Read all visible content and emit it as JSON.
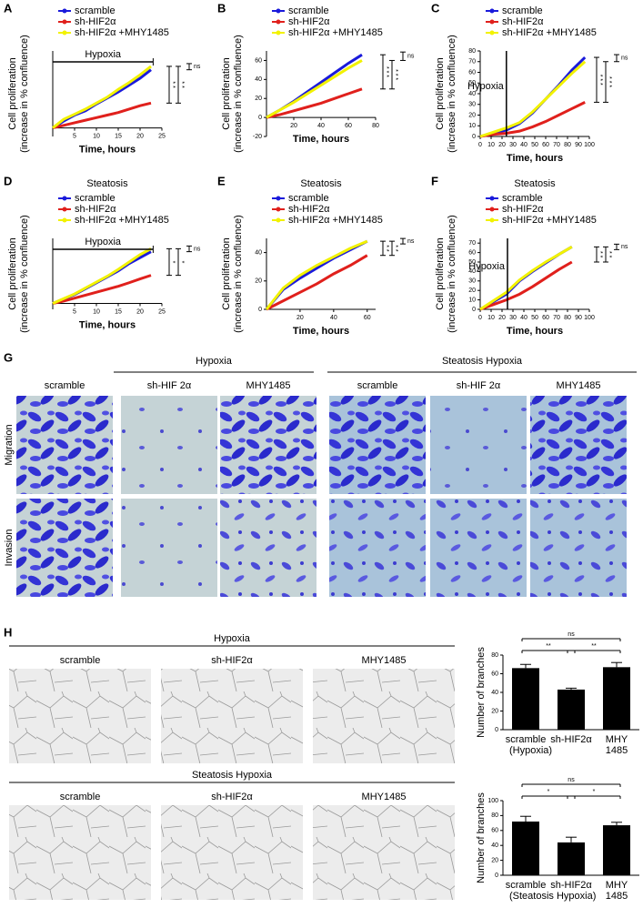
{
  "chart_data": [
    {
      "panel": "A",
      "type": "line",
      "ylabel": [
        "Cell proliferation",
        "(increase in % confluence)"
      ],
      "xlabel": "Time, hours",
      "xlim": [
        0,
        25
      ],
      "xticks": [
        5,
        10,
        15,
        20,
        25
      ],
      "ylim": [
        -1,
        9
      ],
      "x": [
        0,
        2.5,
        5,
        7.5,
        10,
        12.5,
        15,
        17.5,
        20,
        22.5
      ],
      "series": [
        {
          "name": "scramble",
          "color": "#1a1adb",
          "values": [
            0,
            0.8,
            1.5,
            2,
            2.8,
            3.5,
            4.2,
            5,
            5.8,
            6.8
          ]
        },
        {
          "name": "sh-HIF2α",
          "color": "#e0201c",
          "values": [
            0,
            0.3,
            0.6,
            0.9,
            1.2,
            1.5,
            1.8,
            2.2,
            2.6,
            2.9
          ]
        },
        {
          "name": "sh-HIF2α +MHY1485",
          "color": "#f2f200",
          "values": [
            0,
            1,
            1.6,
            2.2,
            2.9,
            3.6,
            4.5,
            5.3,
            6.2,
            7.2
          ]
        }
      ],
      "marker": {
        "label": "Hypoxia",
        "x": [
          0,
          23
        ]
      },
      "brackets": [
        "ns",
        "* *",
        "* *"
      ]
    },
    {
      "panel": "B",
      "type": "line",
      "ylabel": [
        "Cell proliferation",
        "(increase in % confluence)"
      ],
      "xlabel": "Time, hours",
      "xlim": [
        0,
        80
      ],
      "xticks": [
        20,
        40,
        60,
        80
      ],
      "ylim": [
        -20,
        70
      ],
      "yticks": [
        -20,
        0,
        20,
        40,
        60
      ],
      "x": [
        0,
        10,
        20,
        30,
        40,
        50,
        60,
        70
      ],
      "series": [
        {
          "name": "scramble",
          "color": "#1a1adb",
          "values": [
            0,
            8,
            17,
            27,
            37,
            47,
            57,
            66
          ]
        },
        {
          "name": "sh-HIF2α",
          "color": "#e0201c",
          "values": [
            0,
            3,
            7,
            11,
            15,
            20,
            25,
            30
          ]
        },
        {
          "name": "sh-HIF2α +MHY1485",
          "color": "#f2f200",
          "values": [
            0,
            8,
            16,
            25,
            34,
            43,
            52,
            60
          ]
        }
      ],
      "brackets": [
        "ns",
        "* * *",
        "* * *"
      ]
    },
    {
      "panel": "C",
      "type": "line",
      "ylabel": [
        "Cell proliferation",
        "(increase in % confluence)"
      ],
      "xlabel": "Time, hours",
      "xlim": [
        0,
        100
      ],
      "xticks": [
        0,
        10,
        20,
        30,
        40,
        50,
        60,
        70,
        80,
        90,
        100
      ],
      "ylim": [
        0,
        80
      ],
      "yticks": [
        0,
        10,
        20,
        30,
        40,
        50,
        60,
        70,
        80
      ],
      "x": [
        0,
        12,
        24,
        36,
        48,
        60,
        72,
        84,
        96
      ],
      "series": [
        {
          "name": "scramble",
          "color": "#1a1adb",
          "values": [
            0,
            3,
            6,
            12,
            22,
            35,
            48,
            62,
            74
          ]
        },
        {
          "name": "sh-HIF2α",
          "color": "#e0201c",
          "values": [
            0,
            2,
            3,
            5,
            9,
            14,
            20,
            26,
            32
          ]
        },
        {
          "name": "sh-HIF2α +MHY1485",
          "color": "#f2f200",
          "values": [
            0,
            4,
            8,
            13,
            23,
            35,
            47,
            59,
            70
          ]
        }
      ],
      "marker": {
        "label": "Hypoxia",
        "x": 24
      },
      "brackets": [
        "ns",
        "* * *",
        "* * *"
      ]
    },
    {
      "panel": "D",
      "type": "line",
      "title": "Steatosis",
      "ylabel": [
        "Cell proliferation",
        "(increase in % confluence)"
      ],
      "xlabel": "Time, hours",
      "xlim": [
        0,
        25
      ],
      "xticks": [
        5,
        10,
        15,
        20,
        25
      ],
      "ylim": [
        -2,
        22
      ],
      "x": [
        0,
        2.5,
        5,
        7.5,
        10,
        12.5,
        15,
        17.5,
        20,
        22.5
      ],
      "series": [
        {
          "name": "scramble",
          "color": "#1a1adb",
          "values": [
            0,
            1.5,
            3,
            5,
            7,
            9,
            11,
            13.5,
            15.5,
            17.5
          ]
        },
        {
          "name": "sh-HIF2α",
          "color": "#e0201c",
          "values": [
            0,
            0.8,
            1.8,
            2.8,
            3.8,
            4.8,
            5.8,
            7,
            8.3,
            9.5
          ]
        },
        {
          "name": "sh-HIF2α +MHY1485",
          "color": "#f2f200",
          "values": [
            0,
            1.6,
            3.2,
            5.2,
            7.2,
            9.2,
            11.5,
            14,
            16.5,
            18.5
          ]
        }
      ],
      "marker": {
        "label": "Hypoxia",
        "x": [
          0,
          23
        ]
      },
      "brackets": [
        "ns",
        "*",
        "*"
      ]
    },
    {
      "panel": "E",
      "type": "line",
      "title": "Steatosis",
      "ylabel": [
        "Cell proliferation",
        "(increase in % confluence)"
      ],
      "xlabel": "Time, hours",
      "xlim": [
        0,
        65
      ],
      "xticks": [
        20,
        40,
        60
      ],
      "ylim": [
        0,
        50
      ],
      "yticks": [
        0,
        20,
        40
      ],
      "x": [
        0,
        10,
        20,
        30,
        40,
        50,
        60
      ],
      "series": [
        {
          "name": "scramble",
          "color": "#1a1adb",
          "values": [
            0,
            14,
            22,
            29,
            36,
            42,
            48
          ]
        },
        {
          "name": "sh-HIF2α",
          "color": "#e0201c",
          "values": [
            0,
            6,
            12,
            18,
            25,
            31,
            38
          ]
        },
        {
          "name": "sh-HIF2α +MHY1485",
          "color": "#f2f200",
          "values": [
            0,
            15,
            24,
            31,
            37,
            43,
            48
          ]
        }
      ],
      "brackets": [
        "ns",
        "* *",
        "* *"
      ]
    },
    {
      "panel": "F",
      "type": "line",
      "title": "Steatosis",
      "ylabel": [
        "Cell proliferation",
        "(increase in % confluence)"
      ],
      "xlabel": "Time, hours",
      "xlim": [
        0,
        100
      ],
      "xticks": [
        0,
        10,
        20,
        30,
        40,
        50,
        60,
        70,
        80,
        90,
        100
      ],
      "ylim": [
        0,
        75
      ],
      "yticks": [
        0,
        10,
        20,
        30,
        40,
        50,
        60,
        70
      ],
      "x": [
        0,
        12,
        24,
        36,
        48,
        60,
        72,
        84
      ],
      "series": [
        {
          "name": "scramble",
          "color": "#1a1adb",
          "values": [
            0,
            8,
            16,
            30,
            40,
            49,
            58,
            66
          ]
        },
        {
          "name": "sh-HIF2α",
          "color": "#e0201c",
          "values": [
            0,
            5,
            10,
            16,
            24,
            33,
            42,
            50
          ]
        },
        {
          "name": "sh-HIF2α +MHY1485",
          "color": "#f2f200",
          "values": [
            0,
            9,
            18,
            31,
            41,
            50,
            58,
            66
          ]
        }
      ],
      "marker": {
        "label": "Hypoxia",
        "x": 25
      },
      "brackets": [
        "ns",
        "* *",
        "* *"
      ]
    },
    {
      "type": "bar",
      "ylabel": "Number of branches",
      "xlabel": "(Hypoxia)",
      "categories": [
        "scramble",
        "sh-HIF2α",
        "MHY 1485"
      ],
      "values": [
        66,
        43,
        67
      ],
      "errors": [
        4,
        1.5,
        5
      ],
      "color": "#000000",
      "ylim": [
        0,
        80
      ],
      "yticks": [
        0,
        20,
        40,
        60,
        80
      ],
      "annotations": [
        "ns",
        "**",
        "**"
      ]
    },
    {
      "type": "bar",
      "ylabel": "Number of branches",
      "xlabel": "(Steatosis Hypoxia)",
      "categories": [
        "scramble",
        "sh-HIF2α",
        "MHY 1485"
      ],
      "values": [
        72,
        44,
        67
      ],
      "errors": [
        7,
        7,
        4
      ],
      "color": "#000000",
      "ylim": [
        0,
        100
      ],
      "yticks": [
        0,
        20,
        40,
        60,
        80,
        100
      ],
      "annotations": [
        "ns",
        "*",
        "*"
      ]
    }
  ],
  "panel_g": {
    "label": "G",
    "rows": [
      "Migration",
      "Invasion"
    ],
    "groups": [
      {
        "title": "Hypoxia",
        "columns": [
          "scramble",
          "sh-HIF 2α",
          "MHY1485"
        ]
      },
      {
        "title": "Steatosis Hypoxia",
        "columns": [
          "scramble",
          "sh-HIF 2α",
          "MHY1485"
        ]
      }
    ]
  },
  "panel_h": {
    "label": "H",
    "groups": [
      {
        "title": "Hypoxia",
        "columns": [
          "scramble",
          "sh-HIF2α",
          "MHY1485"
        ]
      },
      {
        "title": "Steatosis Hypoxia",
        "columns": [
          "scramble",
          "sh-HIF2α",
          "MHY1485"
        ]
      }
    ]
  }
}
